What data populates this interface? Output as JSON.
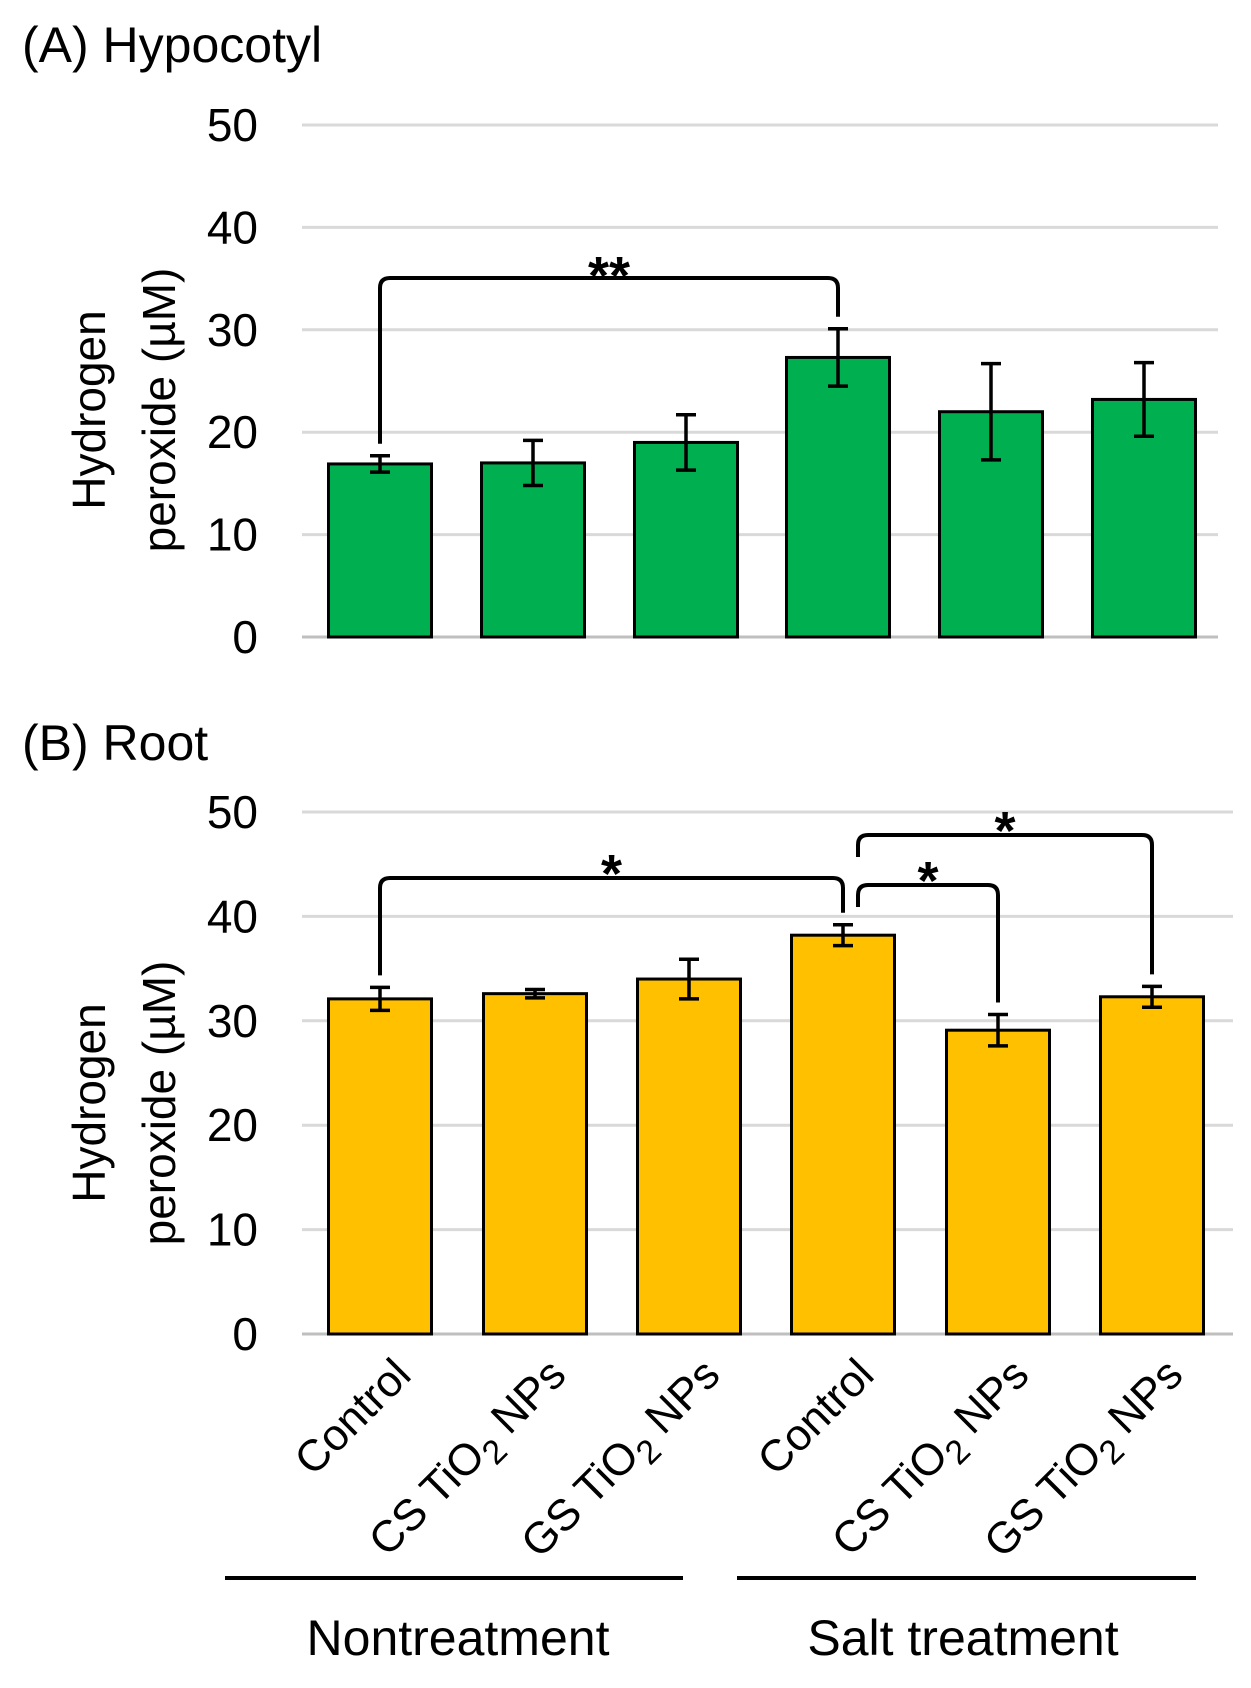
{
  "chart_data": [
    {
      "type": "bar",
      "title": "(A) Hypocotyl",
      "ylabel_lines": [
        "Hydrogen",
        "peroxide (µM)"
      ],
      "ylim": [
        0,
        50
      ],
      "yticks": [
        0,
        10,
        20,
        30,
        40,
        50
      ],
      "grid": true,
      "categories": [
        "Control",
        "CS TiO2 NPs",
        "GS TiO2 NPs",
        "Control",
        "CS TiO2 NPs",
        "GS TiO2 NPs"
      ],
      "values": [
        16.9,
        17.0,
        19.0,
        27.3,
        22.0,
        23.2
      ],
      "errors": [
        0.8,
        2.2,
        2.7,
        2.8,
        4.7,
        3.6
      ],
      "color": "#00b050",
      "significance": [
        {
          "from": 0,
          "to": 3,
          "label": "**"
        }
      ]
    },
    {
      "type": "bar",
      "title": "(B) Root",
      "ylabel_lines": [
        "Hydrogen",
        "peroxide (µM)"
      ],
      "ylim": [
        0,
        50
      ],
      "yticks": [
        0,
        10,
        20,
        30,
        40,
        50
      ],
      "grid": true,
      "categories": [
        "Control",
        "CS TiO2 NPs",
        "GS TiO2 NPs",
        "Control",
        "CS TiO2 NPs",
        "GS TiO2 NPs"
      ],
      "values": [
        32.1,
        32.6,
        34.0,
        38.2,
        29.1,
        32.3
      ],
      "errors": [
        1.1,
        0.4,
        1.9,
        1.0,
        1.5,
        1.0
      ],
      "color": "#ffc000",
      "significance": [
        {
          "from": 0,
          "to": 3,
          "label": "*"
        },
        {
          "from": 3,
          "to": 4,
          "label": "*"
        },
        {
          "from": 3,
          "to": 5,
          "label": "*"
        }
      ]
    }
  ],
  "x_category_parts": [
    {
      "pre": "Control",
      "sub": "",
      "post": ""
    },
    {
      "pre": "CS TiO",
      "sub": "2",
      "post": " NPs"
    },
    {
      "pre": "GS TiO",
      "sub": "2",
      "post": " NPs"
    },
    {
      "pre": "Control",
      "sub": "",
      "post": ""
    },
    {
      "pre": "CS TiO",
      "sub": "2",
      "post": " NPs"
    },
    {
      "pre": "GS TiO",
      "sub": "2",
      "post": " NPs"
    }
  ],
  "groups": [
    {
      "label": "Nontreatment",
      "categories": [
        0,
        1,
        2
      ]
    },
    {
      "label": "Salt treatment",
      "categories": [
        3,
        4,
        5
      ]
    }
  ]
}
